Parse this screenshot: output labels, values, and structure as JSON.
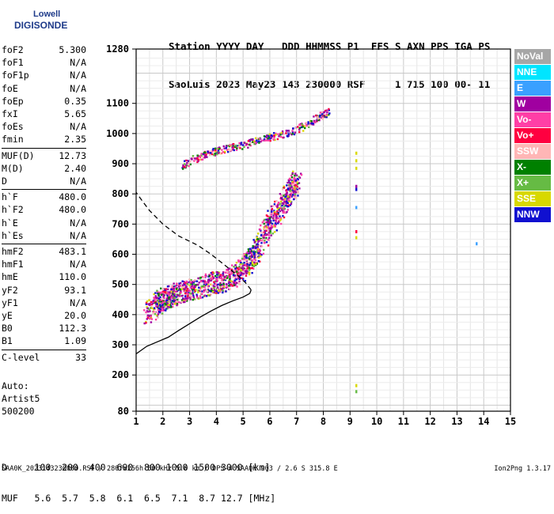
{
  "logo": {
    "line1": "Lowell",
    "line2": "DIGISONDE"
  },
  "header": {
    "labels": "Station YYYY DAY   DDD HHMMSS P1  FFS S AXN PPS IGA PS",
    "values": "SaoLuis 2023 May23 143 230000 RSF     1 715 100 00- 11"
  },
  "params": [
    {
      "name": "foF2",
      "value": "5.300"
    },
    {
      "name": "foF1",
      "value": "N/A"
    },
    {
      "name": "foF1p",
      "value": "N/A"
    },
    {
      "name": "foE",
      "value": "N/A"
    },
    {
      "name": "foEp",
      "value": "0.35"
    },
    {
      "name": "fxI",
      "value": "5.65"
    },
    {
      "name": "foEs",
      "value": "N/A"
    },
    {
      "name": "fmin",
      "value": "2.35"
    },
    {
      "name": "MUF(D)",
      "value": "12.73"
    },
    {
      "name": "M(D)",
      "value": "2.40"
    },
    {
      "name": "D",
      "value": "N/A"
    },
    {
      "name": "h`F",
      "value": "480.0"
    },
    {
      "name": "h`F2",
      "value": "480.0"
    },
    {
      "name": "h`E",
      "value": "N/A"
    },
    {
      "name": "h`Es",
      "value": "N/A"
    },
    {
      "name": "hmF2",
      "value": "483.1"
    },
    {
      "name": "hmF1",
      "value": "N/A"
    },
    {
      "name": "hmE",
      "value": "110.0"
    },
    {
      "name": "yF2",
      "value": "93.1"
    },
    {
      "name": "yF1",
      "value": "N/A"
    },
    {
      "name": "yE",
      "value": "20.0"
    },
    {
      "name": "B0",
      "value": "112.3"
    },
    {
      "name": "B1",
      "value": "1.09"
    },
    {
      "name": "C-level",
      "value": "33"
    }
  ],
  "auto": {
    "line1": "Auto:",
    "line2": "Artist5",
    "line3": "500200"
  },
  "legend": [
    {
      "label": "NoVal",
      "color": "#a6a6a6"
    },
    {
      "label": "NNE",
      "color": "#00e5ff"
    },
    {
      "label": "E",
      "color": "#3aa0ff"
    },
    {
      "label": "W",
      "color": "#a000a0"
    },
    {
      "label": "Vo-",
      "color": "#ff3fa6"
    },
    {
      "label": "Vo+",
      "color": "#ff0040"
    },
    {
      "label": "SSW",
      "color": "#ffb6b6"
    },
    {
      "label": "X-",
      "color": "#008000"
    },
    {
      "label": "X+",
      "color": "#66bb44"
    },
    {
      "label": "SSE",
      "color": "#d8d800"
    },
    {
      "label": "NNW",
      "color": "#1010d0"
    }
  ],
  "muf_table": {
    "d_row": "D     100  200  400  600  800 1000 1500 3000 [km]",
    "muf_row": "MUF   5.6  5.7  5.8  6.1  6.5  7.1  8.7 12.7 [MHz]"
  },
  "footer": {
    "text": "SAA0K_2023143230000.RSF / 280fx256h 50 kHz 5.0 km / DPS-4 SAA0K 903 / 2.6 S 315.8 E",
    "version": "Ion2Png 1.3.17"
  },
  "chart_data": {
    "type": "scatter",
    "title": "",
    "xlabel": "",
    "ylabel": "",
    "xlim": [
      1,
      15
    ],
    "ylim": [
      80,
      1280
    ],
    "x_ticks": [
      1,
      2,
      3,
      4,
      5,
      6,
      7,
      8,
      9,
      10,
      11,
      12,
      13,
      14,
      15
    ],
    "y_ticks": [
      80,
      200,
      300,
      400,
      500,
      600,
      700,
      800,
      900,
      1000,
      1100,
      1280
    ],
    "grid": true,
    "legend_position": "right",
    "series": [
      {
        "name": "O-trace",
        "points": [
          [
            1.4,
            400
          ],
          [
            1.8,
            440
          ],
          [
            2.0,
            455
          ],
          [
            2.3,
            465
          ],
          [
            2.6,
            475
          ],
          [
            3.0,
            485
          ],
          [
            3.4,
            495
          ],
          [
            3.8,
            505
          ],
          [
            4.2,
            515
          ],
          [
            4.6,
            530
          ],
          [
            5.0,
            555
          ],
          [
            5.3,
            590
          ],
          [
            5.6,
            640
          ],
          [
            5.9,
            690
          ],
          [
            6.2,
            735
          ],
          [
            6.5,
            780
          ],
          [
            6.8,
            820
          ],
          [
            7.0,
            845
          ]
        ]
      },
      {
        "name": "2-hop",
        "points": [
          [
            2.7,
            895
          ],
          [
            3.2,
            920
          ],
          [
            3.6,
            935
          ],
          [
            4.0,
            945
          ],
          [
            4.5,
            955
          ],
          [
            5.0,
            965
          ],
          [
            5.5,
            980
          ],
          [
            6.0,
            990
          ],
          [
            6.5,
            1000
          ],
          [
            7.0,
            1015
          ],
          [
            7.5,
            1040
          ],
          [
            7.9,
            1060
          ],
          [
            8.2,
            1075
          ]
        ]
      },
      {
        "name": "profile",
        "points": [
          [
            5.3,
            482
          ],
          [
            5.25,
            470
          ],
          [
            5.0,
            458
          ],
          [
            4.6,
            445
          ],
          [
            4.2,
            430
          ],
          [
            3.8,
            412
          ],
          [
            3.4,
            392
          ],
          [
            3.0,
            370
          ],
          [
            2.6,
            348
          ],
          [
            2.2,
            325
          ],
          [
            1.8,
            310
          ],
          [
            1.4,
            295
          ],
          [
            1.0,
            270
          ]
        ]
      },
      {
        "name": "profile-top",
        "points": [
          [
            5.3,
            482
          ],
          [
            5.1,
            505
          ],
          [
            4.8,
            530
          ],
          [
            4.3,
            565
          ],
          [
            3.8,
            600
          ],
          [
            3.3,
            630
          ],
          [
            2.6,
            660
          ],
          [
            2.0,
            700
          ],
          [
            1.5,
            745
          ],
          [
            1.2,
            780
          ],
          [
            1.0,
            805
          ]
        ]
      }
    ]
  }
}
